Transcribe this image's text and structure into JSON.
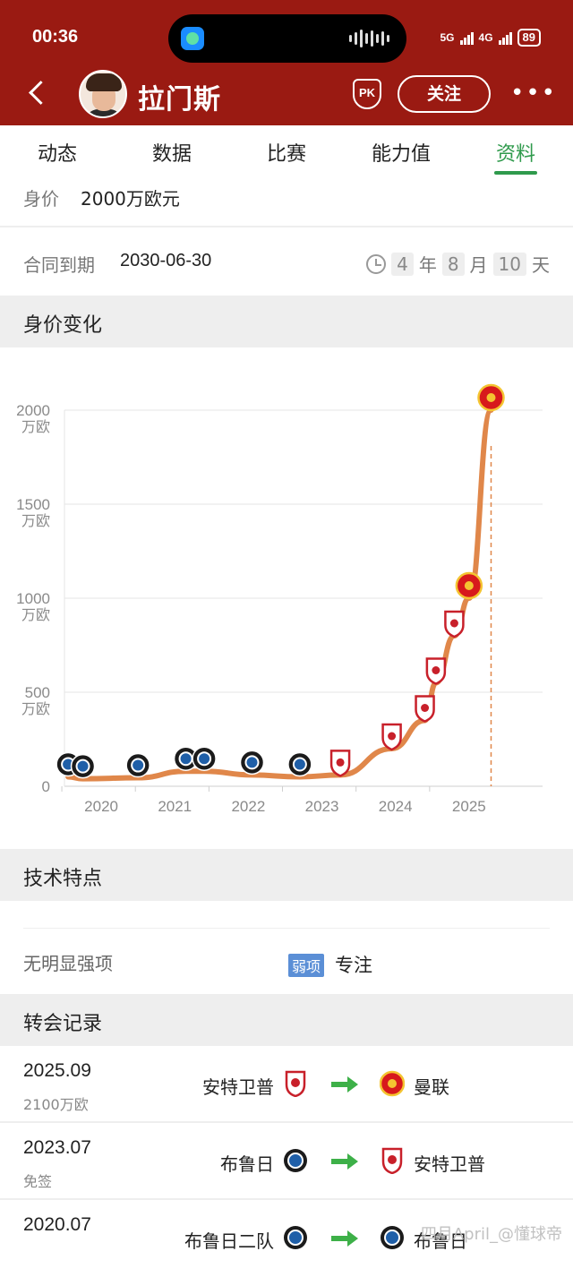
{
  "status_bar": {
    "time": "00:36",
    "network_1": "5G",
    "network_2": "4G",
    "battery": "89"
  },
  "header": {
    "player_name": "拉门斯",
    "pk_label": "PK",
    "follow_label": "关注",
    "more_label": "•••"
  },
  "tabs": [
    {
      "label": "动态",
      "active": false
    },
    {
      "label": "数据",
      "active": false
    },
    {
      "label": "比赛",
      "active": false
    },
    {
      "label": "能力值",
      "active": false
    },
    {
      "label": "资料",
      "active": true
    }
  ],
  "profile": {
    "value_label": "身价",
    "value": "2000万欧元",
    "contract_label": "合同到期",
    "contract_date": "2030-06-30",
    "countdown": {
      "years": "4",
      "years_unit": "年",
      "months": "8",
      "months_unit": "月",
      "days": "10",
      "days_unit": "天"
    }
  },
  "sections": {
    "value_history": "身价变化",
    "features": "技术特点",
    "transfers": "转会记录"
  },
  "chart_data": {
    "type": "line",
    "y_ticks": [
      {
        "value": 0,
        "line1": "0",
        "line2": ""
      },
      {
        "value": 500,
        "line1": "500",
        "line2": "万欧"
      },
      {
        "value": 1000,
        "line1": "1000",
        "line2": "万欧"
      },
      {
        "value": 1500,
        "line1": "1500",
        "line2": "万欧"
      },
      {
        "value": 2000,
        "line1": "2000",
        "line2": "万欧"
      }
    ],
    "x_ticks": [
      "2020",
      "2021",
      "2022",
      "2023",
      "2024",
      "2025"
    ],
    "x_range": [
      2019.5,
      2026.0
    ],
    "ylim": [
      0,
      2000
    ],
    "series": [
      {
        "points": [
          {
            "x": 2019.55,
            "y": 50,
            "club": "bruges"
          },
          {
            "x": 2019.75,
            "y": 40,
            "club": "bruges"
          },
          {
            "x": 2020.5,
            "y": 45,
            "club": "bruges"
          },
          {
            "x": 2021.15,
            "y": 80,
            "club": "bruges"
          },
          {
            "x": 2021.4,
            "y": 80,
            "club": "bruges"
          },
          {
            "x": 2022.05,
            "y": 60,
            "club": "bruges"
          },
          {
            "x": 2022.7,
            "y": 50,
            "club": "bruges"
          },
          {
            "x": 2023.25,
            "y": 60,
            "club": "antwerp"
          },
          {
            "x": 2023.95,
            "y": 200,
            "club": "antwerp"
          },
          {
            "x": 2024.4,
            "y": 350,
            "club": "antwerp"
          },
          {
            "x": 2024.55,
            "y": 550,
            "club": "antwerp"
          },
          {
            "x": 2024.8,
            "y": 800,
            "club": "antwerp"
          },
          {
            "x": 2025.0,
            "y": 1000,
            "club": "manutd"
          },
          {
            "x": 2025.3,
            "y": 2000,
            "club": "manutd"
          }
        ]
      }
    ],
    "line_color": "#e0874a",
    "current_marker_x": 2025.3,
    "grid": true
  },
  "features": {
    "strength_text": "无明显强项",
    "weak_tag": "弱项",
    "weak_text": "专注"
  },
  "transfers": [
    {
      "date": "2025.09",
      "fee": "2100万欧",
      "from": "安特卫普",
      "from_badge": "antwerp",
      "to": "曼联",
      "to_badge": "manutd"
    },
    {
      "date": "2023.07",
      "fee": "免签",
      "from": "布鲁日",
      "from_badge": "bruges",
      "to": "安特卫普",
      "to_badge": "antwerp"
    },
    {
      "date": "2020.07",
      "fee": "",
      "from": "布鲁日二队",
      "from_badge": "bruges",
      "to": "布鲁日",
      "to_badge": "bruges"
    }
  ],
  "watermark": "四月April_@懂球帝",
  "colors": {
    "header_red": "#9a1a12",
    "active_green": "#2f9a4c",
    "line_orange": "#e0874a",
    "arrow_green": "#3db048",
    "weak_blue": "#5b8fd6"
  }
}
